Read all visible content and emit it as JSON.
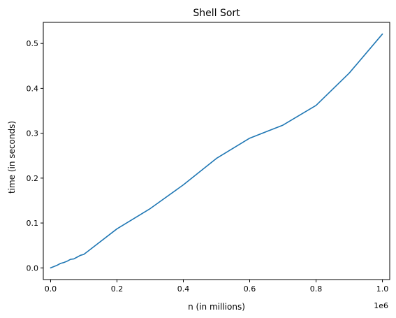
{
  "chart_data": {
    "type": "line",
    "title": "Shell Sort",
    "xlabel": "n (in millions)",
    "ylabel": "time (in seconds)",
    "x_offset_label": "1e6",
    "xlim": [
      -22000,
      1022000
    ],
    "ylim": [
      -0.026,
      0.547
    ],
    "x_ticks": [
      {
        "value": 0,
        "label": "0.0"
      },
      {
        "value": 200000,
        "label": "0.2"
      },
      {
        "value": 400000,
        "label": "0.4"
      },
      {
        "value": 600000,
        "label": "0.6"
      },
      {
        "value": 800000,
        "label": "0.8"
      },
      {
        "value": 1000000,
        "label": "1.0"
      }
    ],
    "y_ticks": [
      {
        "value": 0.0,
        "label": "0.0"
      },
      {
        "value": 0.1,
        "label": "0.1"
      },
      {
        "value": 0.2,
        "label": "0.2"
      },
      {
        "value": 0.3,
        "label": "0.3"
      },
      {
        "value": 0.4,
        "label": "0.4"
      },
      {
        "value": 0.5,
        "label": "0.5"
      }
    ],
    "grid": false,
    "series": [
      {
        "color": "#1f77b4",
        "x": [
          0,
          10000,
          20000,
          30000,
          40000,
          50000,
          60000,
          70000,
          80000,
          90000,
          100000,
          200000,
          300000,
          400000,
          500000,
          600000,
          700000,
          800000,
          900000,
          1000000
        ],
        "y": [
          0.0,
          0.003,
          0.006,
          0.01,
          0.012,
          0.015,
          0.019,
          0.02,
          0.024,
          0.028,
          0.03,
          0.087,
          0.132,
          0.185,
          0.244,
          0.289,
          0.318,
          0.362,
          0.434,
          0.521
        ]
      }
    ]
  }
}
